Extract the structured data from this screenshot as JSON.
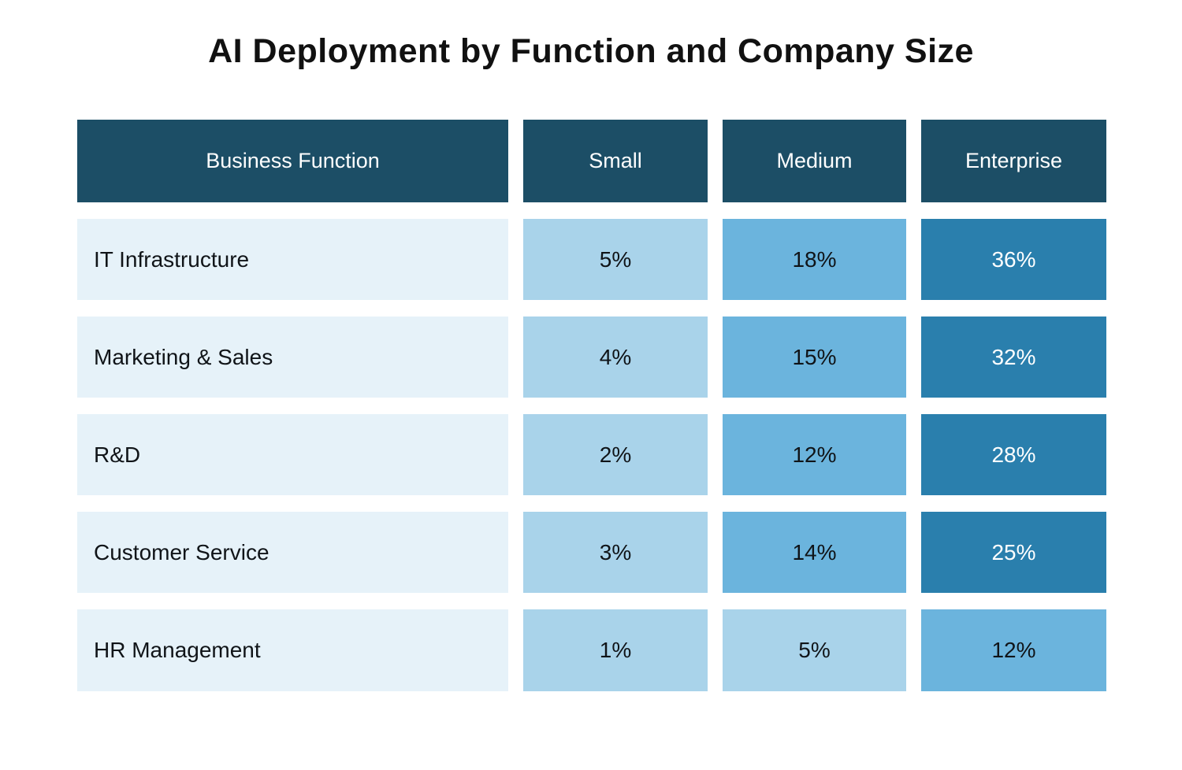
{
  "title": "AI Deployment by Function and Company Size",
  "table": {
    "headers": [
      "Business Function",
      "Small",
      "Medium",
      "Enterprise"
    ],
    "rows": [
      {
        "function": "IT Infrastructure",
        "values": [
          {
            "text": "5%",
            "tier": "tier-low"
          },
          {
            "text": "18%",
            "tier": "tier-mid"
          },
          {
            "text": "36%",
            "tier": "tier-high"
          }
        ]
      },
      {
        "function": "Marketing & Sales",
        "values": [
          {
            "text": "4%",
            "tier": "tier-low"
          },
          {
            "text": "15%",
            "tier": "tier-mid"
          },
          {
            "text": "32%",
            "tier": "tier-high"
          }
        ]
      },
      {
        "function": "R&D",
        "values": [
          {
            "text": "2%",
            "tier": "tier-low"
          },
          {
            "text": "12%",
            "tier": "tier-mid"
          },
          {
            "text": "28%",
            "tier": "tier-high"
          }
        ]
      },
      {
        "function": "Customer Service",
        "values": [
          {
            "text": "3%",
            "tier": "tier-low"
          },
          {
            "text": "14%",
            "tier": "tier-mid"
          },
          {
            "text": "25%",
            "tier": "tier-high"
          }
        ]
      },
      {
        "function": "HR Management",
        "values": [
          {
            "text": "1%",
            "tier": "tier-low"
          },
          {
            "text": "5%",
            "tier": "tier-low"
          },
          {
            "text": "12%",
            "tier": "tier-mid"
          }
        ]
      }
    ]
  },
  "chart_data": {
    "type": "heatmap",
    "title": "AI Deployment by Function and Company Size",
    "rows": [
      "IT Infrastructure",
      "Marketing & Sales",
      "R&D",
      "Customer Service",
      "HR Management"
    ],
    "columns": [
      "Small",
      "Medium",
      "Enterprise"
    ],
    "values": [
      [
        5,
        18,
        36
      ],
      [
        4,
        15,
        32
      ],
      [
        2,
        12,
        28
      ],
      [
        3,
        14,
        25
      ],
      [
        1,
        5,
        12
      ]
    ],
    "unit": "%",
    "value_tiers": {
      "tier-low": {
        "range": "1-5%",
        "color": "#A9D3EA",
        "text_color": "#101418"
      },
      "tier-mid": {
        "range": "12-18%",
        "color": "#6BB4DD",
        "text_color": "#101418"
      },
      "tier-high": {
        "range": "25-36%",
        "color": "#2A7FAD",
        "text_color": "#FFFFFF"
      }
    },
    "legend_position": "none",
    "grid": false
  },
  "colors": {
    "header_background": "#1C4E66",
    "header_text": "#FFFFFF",
    "row_label_background": "#E6F2F9",
    "page_background": "#FFFFFF",
    "title_text": "#111111",
    "cell_text_dark": "#101418"
  }
}
